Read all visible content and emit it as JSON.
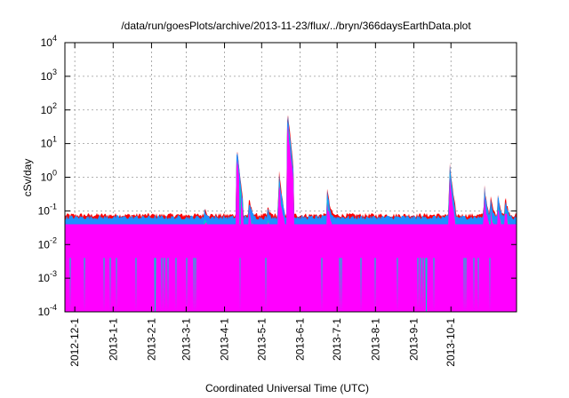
{
  "chart_data": {
    "type": "area",
    "title": "/data/run/goesPlots/archive/2013-11-23/flux/../bryn/366daysEarthData.plot",
    "xlabel": "Coordinated Universal Time (UTC)",
    "ylabel": "cSv/day",
    "yscale": "log",
    "ylim": [
      0.0001,
      10000
    ],
    "y_ticks": [
      {
        "value": 0.0001,
        "base": "10",
        "exp": "-4"
      },
      {
        "value": 0.001,
        "base": "10",
        "exp": "-3"
      },
      {
        "value": 0.01,
        "base": "10",
        "exp": "-2"
      },
      {
        "value": 0.1,
        "base": "10",
        "exp": "-1"
      },
      {
        "value": 1,
        "base": "10",
        "exp": "0"
      },
      {
        "value": 10,
        "base": "10",
        "exp": "1"
      },
      {
        "value": 100,
        "base": "10",
        "exp": "2"
      },
      {
        "value": 1000,
        "base": "10",
        "exp": "3"
      },
      {
        "value": 10000,
        "base": "10",
        "exp": "4"
      }
    ],
    "xlim": [
      "2012-11-23",
      "2013-11-23"
    ],
    "x_ticks": [
      "2012-12-1",
      "2013-1-1",
      "2013-2-1",
      "2013-3-1",
      "2013-4-1",
      "2013-5-1",
      "2013-6-1",
      "2013-7-1",
      "2013-8-1",
      "2013-9-1",
      "2013-10-1"
    ],
    "grid": true,
    "legend": "none",
    "series": [
      {
        "color": "#ff0000",
        "baseline": 0.075
      },
      {
        "color": "#00cc00",
        "baseline": 0.05
      },
      {
        "color": "#1e90ff",
        "baseline": 0.065
      },
      {
        "color": "#00cccc",
        "baseline": 0.035
      },
      {
        "color": "#ff00ff",
        "baseline": 0.03,
        "dropouts_to_floor": true
      }
    ],
    "events": [
      {
        "date": "2013-03-16",
        "peak": 0.13
      },
      {
        "date": "2013-04-11",
        "peak": 9
      },
      {
        "date": "2013-04-21",
        "peak": 0.25
      },
      {
        "date": "2013-05-06",
        "peak": 0.13
      },
      {
        "date": "2013-05-15",
        "peak": 1.6
      },
      {
        "date": "2013-05-22",
        "peak": 100
      },
      {
        "date": "2013-06-23",
        "peak": 0.5
      },
      {
        "date": "2013-09-30",
        "peak": 2.8
      },
      {
        "date": "2013-10-28",
        "peak": 0.6
      },
      {
        "date": "2013-11-02",
        "peak": 0.3
      },
      {
        "date": "2013-11-08",
        "peak": 0.35
      },
      {
        "date": "2013-11-14",
        "peak": 0.3
      }
    ]
  }
}
